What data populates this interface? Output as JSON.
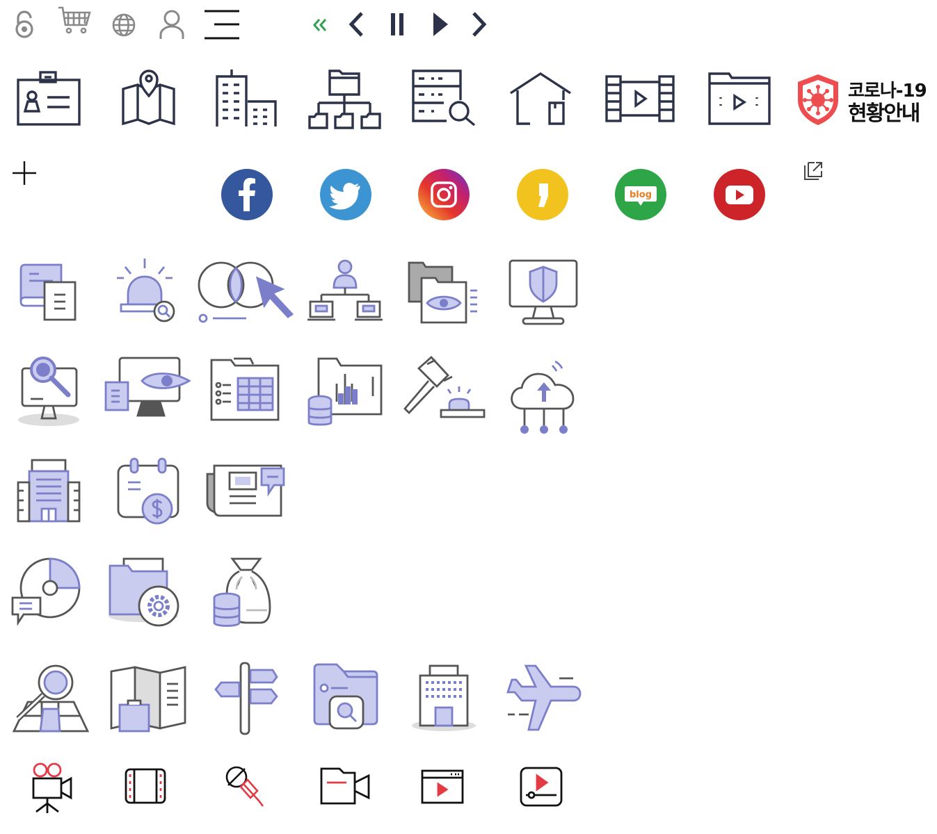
{
  "covid_badge": {
    "line1": "코로나-19",
    "line2": "현황안내"
  },
  "social": {
    "blog_label": "blog",
    "colors": {
      "facebook": "#34579e",
      "twitter": "#3d94d3",
      "kakaostory": "#f2c31f",
      "blog": "#2ea546",
      "youtube": "#cd2429"
    }
  },
  "colors": {
    "nav_dark": "#2c3248",
    "nav_green": "#2fa34f",
    "line_gray": "#555555",
    "accent_purple": "#7b7fc9",
    "fill_lavender": "#c9cbef",
    "media_red": "#e33a44",
    "covid_red": "#ee4d4f"
  },
  "icons": {
    "top_bar": [
      "lock-icon",
      "cart-icon",
      "globe-icon",
      "user-icon",
      "menu-icon"
    ],
    "carousel_controls": [
      "double-chevron-left-icon",
      "chevron-left-icon",
      "pause-icon",
      "play-icon",
      "chevron-right-icon"
    ],
    "row_navy": [
      "id-card-icon",
      "map-pin-icon",
      "buildings-icon",
      "org-chart-icon",
      "server-search-icon",
      "home-icon",
      "film-strip-icon",
      "video-folder-icon"
    ],
    "row_social": [
      "plus-icon",
      "facebook-icon",
      "twitter-icon",
      "instagram-icon",
      "kakaostory-icon",
      "blog-icon",
      "youtube-icon",
      "external-link-icon"
    ],
    "row_3": [
      "book-document-icon",
      "alarm-search-icon",
      "venn-cursor-icon",
      "network-user-icon",
      "folder-eye-icon",
      "monitor-shield-icon"
    ],
    "row_4": [
      "monitor-search-icon",
      "monitor-eye-icon",
      "checklist-table-icon",
      "folder-chart-icon",
      "gavel-icon",
      "cloud-upload-icon"
    ],
    "row_5": [
      "office-building-icon",
      "calendar-dollar-icon",
      "newspaper-chat-icon"
    ],
    "row_6": [
      "pie-chart-chat-icon",
      "folder-gear-icon",
      "money-bag-coins-icon"
    ],
    "row_7": [
      "map-search-icon",
      "folded-map-icon",
      "signpost-icon",
      "folder-search-icon",
      "hotel-icon",
      "airplane-icon"
    ],
    "row_8": [
      "movie-camera-icon",
      "film-frame-icon",
      "microphone-icon",
      "video-camera-icon",
      "browser-play-icon",
      "video-player-icon"
    ]
  }
}
